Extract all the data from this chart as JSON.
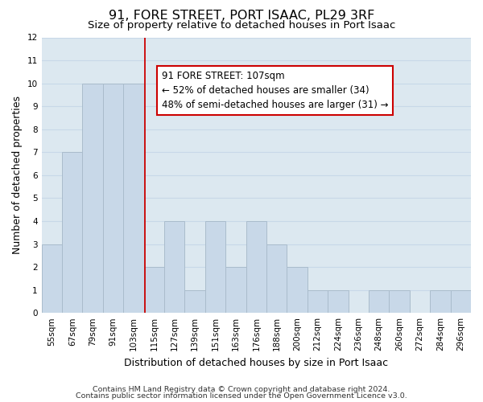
{
  "title": "91, FORE STREET, PORT ISAAC, PL29 3RF",
  "subtitle": "Size of property relative to detached houses in Port Isaac",
  "xlabel": "Distribution of detached houses by size in Port Isaac",
  "ylabel": "Number of detached properties",
  "bar_labels": [
    "55sqm",
    "67sqm",
    "79sqm",
    "91sqm",
    "103sqm",
    "115sqm",
    "127sqm",
    "139sqm",
    "151sqm",
    "163sqm",
    "176sqm",
    "188sqm",
    "200sqm",
    "212sqm",
    "224sqm",
    "236sqm",
    "248sqm",
    "260sqm",
    "272sqm",
    "284sqm",
    "296sqm"
  ],
  "bar_heights": [
    3,
    7,
    10,
    10,
    10,
    2,
    4,
    1,
    4,
    2,
    4,
    3,
    2,
    1,
    1,
    0,
    1,
    1,
    0,
    1,
    1
  ],
  "bar_color": "#c8d8e8",
  "bar_edge_color": "#aabccc",
  "vline_x_index": 4.55,
  "vline_color": "#cc0000",
  "annotation_text": "91 FORE STREET: 107sqm\n← 52% of detached houses are smaller (34)\n48% of semi-detached houses are larger (31) →",
  "ylim": [
    0,
    12
  ],
  "yticks": [
    0,
    1,
    2,
    3,
    4,
    5,
    6,
    7,
    8,
    9,
    10,
    11,
    12
  ],
  "grid_color": "#c8d8e8",
  "bg_color": "#dce8f0",
  "footer_line1": "Contains HM Land Registry data © Crown copyright and database right 2024.",
  "footer_line2": "Contains public sector information licensed under the Open Government Licence v3.0.",
  "title_fontsize": 11.5,
  "subtitle_fontsize": 9.5,
  "axis_label_fontsize": 9,
  "tick_fontsize": 7.5,
  "annotation_fontsize": 8.5,
  "footer_fontsize": 6.8
}
